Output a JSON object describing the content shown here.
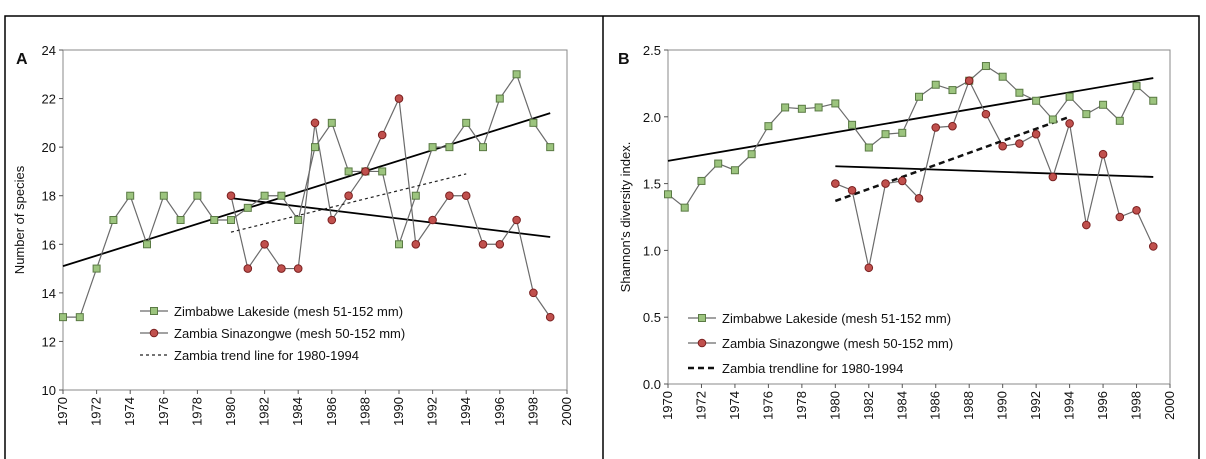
{
  "chart_data": [
    {
      "type": "line",
      "panel": "A",
      "ylabel": "Number of species",
      "xlim": [
        1970,
        2000
      ],
      "xticks": [
        1970,
        1972,
        1974,
        1976,
        1978,
        1980,
        1982,
        1984,
        1986,
        1988,
        1990,
        1992,
        1994,
        1996,
        1998,
        2000
      ],
      "ylim": [
        10,
        24
      ],
      "yticks": [
        10,
        12,
        14,
        16,
        18,
        20,
        22,
        24
      ],
      "series": [
        {
          "name": "Zimbabwe Lakeside (mesh 51-152 mm)",
          "color": "#9cc47e",
          "marker": "square",
          "x": [
            1970,
            1971,
            1972,
            1973,
            1974,
            1975,
            1976,
            1977,
            1978,
            1979,
            1980,
            1981,
            1982,
            1983,
            1984,
            1985,
            1986,
            1987,
            1988,
            1989,
            1990,
            1991,
            1992,
            1993,
            1994,
            1995,
            1996,
            1997,
            1998,
            1999
          ],
          "values": [
            13,
            13,
            15,
            17,
            18,
            16,
            18,
            17,
            18,
            17,
            17,
            17.5,
            18,
            18,
            17,
            20,
            21,
            19,
            19,
            19,
            16,
            18,
            20,
            20,
            21,
            20,
            22,
            23,
            21,
            20
          ]
        },
        {
          "name": "Zambia Sinazongwe (mesh 50-152 mm)",
          "color": "#c0504d",
          "marker": "circle",
          "x": [
            1980,
            1981,
            1982,
            1983,
            1984,
            1985,
            1986,
            1987,
            1988,
            1989,
            1990,
            1991,
            1992,
            1993,
            1994,
            1995,
            1996,
            1997,
            1998,
            1999
          ],
          "values": [
            18,
            15,
            16,
            15,
            15,
            21,
            17,
            18,
            19,
            20.5,
            22,
            16,
            17,
            18,
            18,
            16,
            16,
            17,
            14,
            13
          ]
        },
        {
          "name": "Zambia trend line for 1980-1994",
          "color": "#222222",
          "marker": "none",
          "dash": "3,3",
          "x": [
            1980,
            1994
          ],
          "values": [
            16.5,
            18.9
          ]
        }
      ],
      "trend_lines": [
        {
          "x": [
            1970,
            1999
          ],
          "values": [
            15.1,
            21.4
          ]
        },
        {
          "x": [
            1980,
            1999
          ],
          "values": [
            17.9,
            16.3
          ]
        }
      ]
    },
    {
      "type": "line",
      "panel": "B",
      "ylabel": "Shannon's diversity index.",
      "xlim": [
        1970,
        2000
      ],
      "xticks": [
        1970,
        1972,
        1974,
        1976,
        1978,
        1980,
        1982,
        1984,
        1986,
        1988,
        1990,
        1992,
        1994,
        1996,
        1998,
        2000
      ],
      "ylim": [
        0,
        2.5
      ],
      "yticks": [
        {
          "value": 0,
          "label": "0.0"
        },
        0.5,
        {
          "value": 1,
          "label": "1.0"
        },
        1.5,
        {
          "value": 2,
          "label": "2.0"
        },
        2.5
      ],
      "series": [
        {
          "name": "Zimbabwe Lakeside (mesh 51-152 mm)",
          "color": "#9cc47e",
          "marker": "square",
          "x": [
            1970,
            1971,
            1972,
            1973,
            1974,
            1975,
            1976,
            1977,
            1978,
            1979,
            1980,
            1981,
            1982,
            1983,
            1984,
            1985,
            1986,
            1987,
            1988,
            1989,
            1990,
            1991,
            1992,
            1993,
            1994,
            1995,
            1996,
            1997,
            1998,
            1999
          ],
          "values": [
            1.42,
            1.32,
            1.52,
            1.65,
            1.6,
            1.72,
            1.93,
            2.07,
            2.06,
            2.07,
            2.1,
            1.94,
            1.77,
            1.87,
            1.88,
            2.15,
            2.24,
            2.2,
            2.27,
            2.38,
            2.3,
            2.18,
            2.12,
            1.98,
            2.15,
            2.02,
            2.09,
            1.97,
            2.23,
            2.12
          ]
        },
        {
          "name": "Zambia Sinazongwe (mesh 50-152 mm)",
          "color": "#c0504d",
          "marker": "circle",
          "x": [
            1980,
            1981,
            1982,
            1983,
            1984,
            1985,
            1986,
            1987,
            1988,
            1989,
            1990,
            1991,
            1992,
            1993,
            1994,
            1995,
            1996,
            1997,
            1998,
            1999
          ],
          "values": [
            1.5,
            1.45,
            0.87,
            1.5,
            1.52,
            1.39,
            1.92,
            1.93,
            2.27,
            2.02,
            1.78,
            1.8,
            1.87,
            1.55,
            1.95,
            1.19,
            1.72,
            1.25,
            1.3,
            1.03
          ]
        },
        {
          "name": "Zambia trendline for 1980-1994",
          "color": "#111111",
          "marker": "none",
          "dash": "6,4",
          "width": 2.5,
          "x": [
            1980,
            1994
          ],
          "values": [
            1.37,
            2.0
          ]
        }
      ],
      "trend_lines": [
        {
          "x": [
            1970,
            1999
          ],
          "values": [
            1.67,
            2.29
          ]
        },
        {
          "x": [
            1980,
            1999
          ],
          "values": [
            1.63,
            1.55
          ]
        }
      ]
    }
  ]
}
